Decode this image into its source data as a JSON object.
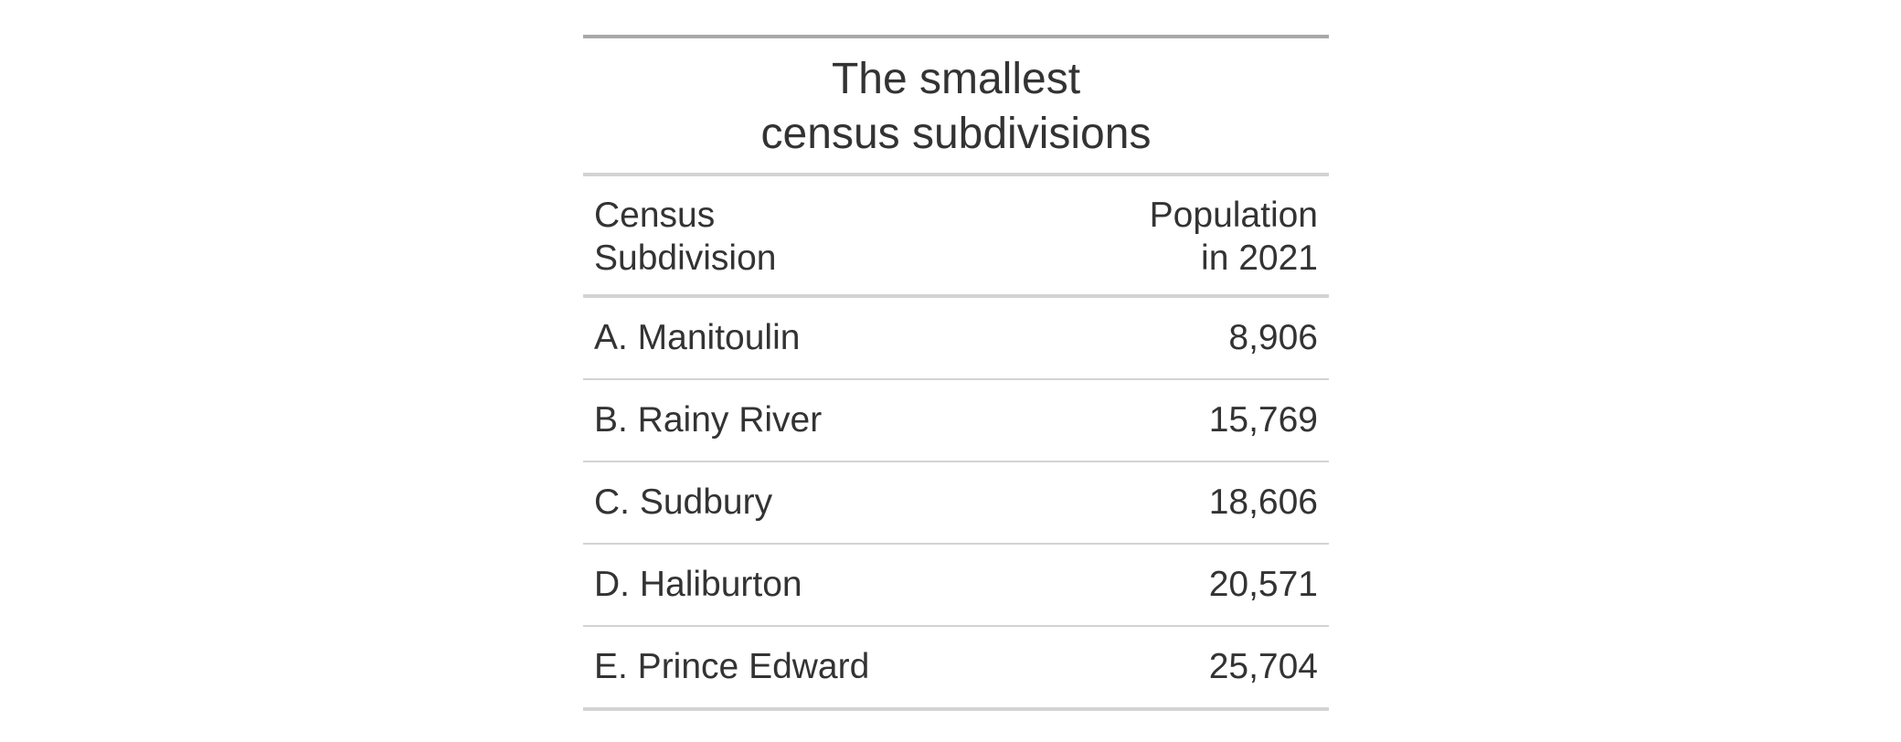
{
  "table": {
    "title_lines": [
      "The smallest",
      "census subdivisions"
    ],
    "columns": [
      {
        "lines": [
          "Census",
          "Subdivision"
        ]
      },
      {
        "lines": [
          "Population",
          "in 2021"
        ]
      }
    ],
    "rows": [
      {
        "name": "A. Manitoulin",
        "population": "8,906"
      },
      {
        "name": "B. Rainy River",
        "population": "15,769"
      },
      {
        "name": "C. Sudbury",
        "population": "18,606"
      },
      {
        "name": "D. Haliburton",
        "population": "20,571"
      },
      {
        "name": "E. Prince Edward",
        "population": "25,704"
      }
    ]
  },
  "colors": {
    "text": "#333333",
    "top_rule": "#a8a8a8",
    "rules": "#d3d3d3"
  }
}
